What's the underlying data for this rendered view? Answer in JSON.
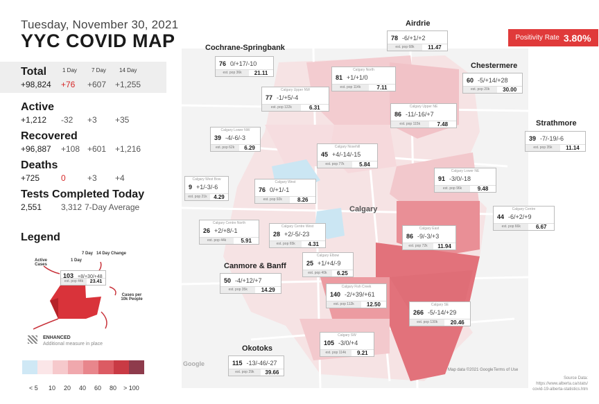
{
  "header": {
    "date": "Tuesday, November 30, 2021",
    "title": "YYC COVID MAP"
  },
  "stats": {
    "col_headers": [
      "1 Day",
      "7 Day",
      "14 Day"
    ],
    "total": {
      "label": "Total",
      "value": "+98,824",
      "d1": "+76",
      "d7": "+607",
      "d14": "+1,255"
    },
    "active": {
      "label": "Active",
      "value": "+1,212",
      "d1": "-32",
      "d7": "+3",
      "d14": "+35"
    },
    "recovered": {
      "label": "Recovered",
      "value": "+96,887",
      "d1": "+108",
      "d7": "+601",
      "d14": "+1,216"
    },
    "deaths": {
      "label": "Deaths",
      "value": "+725",
      "d1": "0",
      "d7": "+3",
      "d14": "+4"
    },
    "tests": {
      "label": "Tests Completed Today",
      "value": "2,551",
      "avg": "3,312",
      "avg_label": "7-Day Average"
    }
  },
  "legend": {
    "title": "Legend",
    "labels": {
      "active": "Active Cases",
      "day1": "1 Day",
      "day7": "7 Day",
      "day14": "14 Day Change",
      "rate": "Cases per 10k People"
    },
    "sample": {
      "active": "103",
      "changes": "+8/+30/+48",
      "pop": "est. pop 44k",
      "rate": "23.41"
    },
    "enhanced_title": "ENHANCED",
    "enhanced_sub": "Additional measure in place",
    "scale_colors": [
      "#cfe8f5",
      "#fbe6e8",
      "#f6c9cc",
      "#f0a8ad",
      "#e8868c",
      "#dc5b63",
      "#c93a44",
      "#8e3b4c",
      "#555555"
    ],
    "scale_labels": [
      "< 5",
      "10",
      "20",
      "40",
      "60",
      "80",
      "> 100"
    ]
  },
  "positivity": {
    "label": "Positivity Rate",
    "value": "3.80%"
  },
  "city_label": "Calgary",
  "regions": [
    {
      "id": "cochrane",
      "name": "Cochrane-Springbank",
      "active": "76",
      "changes": "0/+17/-10",
      "pop": "est. pop 36k",
      "rate": "21.11"
    },
    {
      "id": "airdrie",
      "name": "Airdrie",
      "active": "78",
      "changes": "-6/+1/+2",
      "pop": "est. pop 68k",
      "rate": "11.47"
    },
    {
      "id": "chestermere",
      "name": "Chestermere",
      "active": "60",
      "changes": "-5/+14/+28",
      "pop": "est. pop 20k",
      "rate": "30.00"
    },
    {
      "id": "strathmore",
      "name": "Strathmore",
      "active": "39",
      "changes": "-7/-19/-6",
      "pop": "est. pop 35k",
      "rate": "11.14"
    },
    {
      "id": "canmore",
      "name": "Canmore & Banff",
      "active": "50",
      "changes": "-4/+12/+7",
      "pop": "est. pop 35k",
      "rate": "14.29"
    },
    {
      "id": "okotoks",
      "name": "Okotoks",
      "active": "115",
      "changes": "-13/-46/-27",
      "pop": "est. pop 29k",
      "rate": "39.66"
    },
    {
      "id": "north",
      "name": "Calgary North",
      "active": "81",
      "changes": "+1/+1/0",
      "pop": "est. pop 114k",
      "rate": "7.11"
    },
    {
      "id": "upper_nw",
      "name": "Calgary Upper NW",
      "active": "77",
      "changes": "-1/+5/-4",
      "pop": "est. pop 122k",
      "rate": "6.31"
    },
    {
      "id": "upper_ne",
      "name": "Calgary Upper NE",
      "active": "86",
      "changes": "-11/-16/+7",
      "pop": "est. pop 115k",
      "rate": "7.48"
    },
    {
      "id": "lower_nw",
      "name": "Calgary Lower NW",
      "active": "39",
      "changes": "-4/-6/-3",
      "pop": "est. pop 62k",
      "rate": "6.29"
    },
    {
      "id": "nose_hill",
      "name": "Calgary Nosehill",
      "active": "45",
      "changes": "+4/-14/-15",
      "pop": "est. pop 77k",
      "rate": "5.84"
    },
    {
      "id": "lower_ne",
      "name": "Calgary Lower NE",
      "active": "91",
      "changes": "-3/0/-18",
      "pop": "est. pop 96k",
      "rate": "9.48"
    },
    {
      "id": "west_bow",
      "name": "Calgary West Bow",
      "active": "9",
      "changes": "+1/-3/-6",
      "pop": "est. pop 21k",
      "rate": "4.29"
    },
    {
      "id": "west",
      "name": "Calgary West",
      "active": "76",
      "changes": "0/+1/-1",
      "pop": "est. pop 92k",
      "rate": "8.26"
    },
    {
      "id": "centre",
      "name": "Calgary Centre",
      "active": "44",
      "changes": "-6/+2/+9",
      "pop": "est. pop 66k",
      "rate": "6.67"
    },
    {
      "id": "centre_north",
      "name": "Calgary Centre North",
      "active": "26",
      "changes": "+2/+8/-1",
      "pop": "est. pop 44k",
      "rate": "5.91"
    },
    {
      "id": "centre_west",
      "name": "Calgary Centre West",
      "active": "28",
      "changes": "+2/-5/-23",
      "pop": "est. pop 65k",
      "rate": "4.31"
    },
    {
      "id": "east",
      "name": "Calgary East",
      "active": "86",
      "changes": "-9/-3/+3",
      "pop": "est. pop 72k",
      "rate": "11.94"
    },
    {
      "id": "elbow",
      "name": "Calgary Elbow",
      "active": "25",
      "changes": "+1/+4/-9",
      "pop": "est. pop 40k",
      "rate": "6.25"
    },
    {
      "id": "fish_creek",
      "name": "Calgary Fish Creek",
      "active": "140",
      "changes": "-2/+39/+61",
      "pop": "est. pop 112k",
      "rate": "12.50"
    },
    {
      "id": "se",
      "name": "Calgary SE",
      "active": "266",
      "changes": "-5/-14/+29",
      "pop": "est. pop 130k",
      "rate": "20.46"
    },
    {
      "id": "sw",
      "name": "Calgary SW",
      "active": "105",
      "changes": "-3/0/+4",
      "pop": "est. pop 114k",
      "rate": "9.21"
    }
  ],
  "map_notes": {
    "attribution": "Map data ©2021 Google",
    "terms": "Terms of Use",
    "google": "Google"
  },
  "source": {
    "label": "Source Data:",
    "line1": "https://www.alberta.ca/stats/",
    "line2": "covid-19-alberta-statistics.htm"
  }
}
